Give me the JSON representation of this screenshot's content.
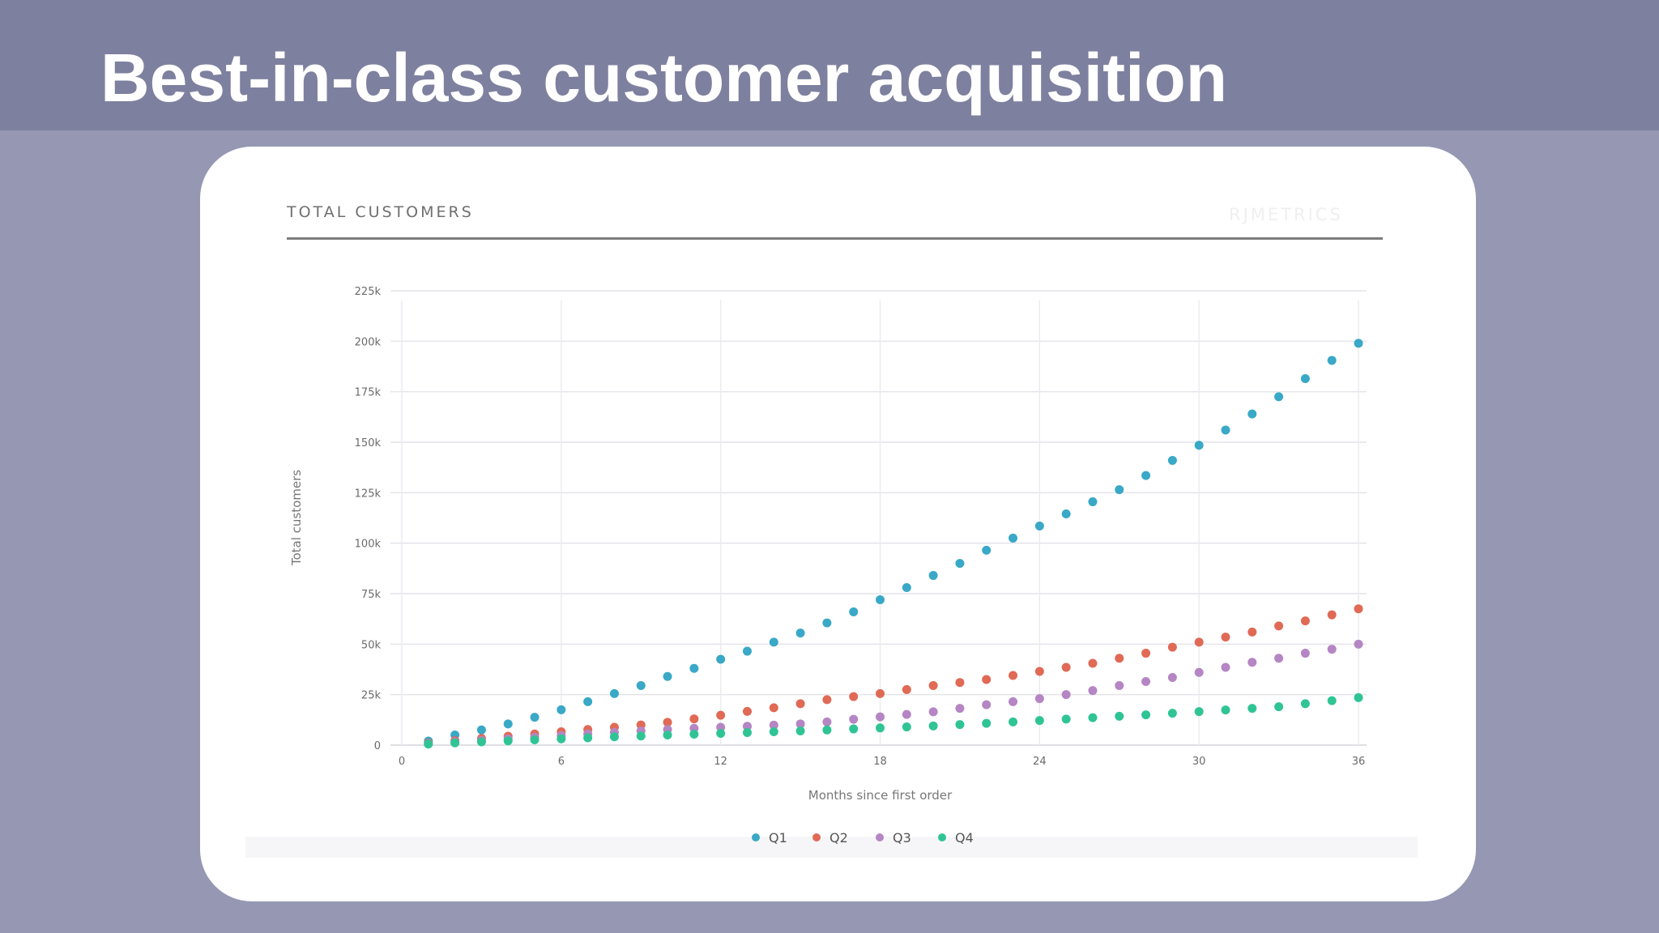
{
  "slide": {
    "title": "Best-in-class customer acquisition"
  },
  "chart_header": {
    "title": "TOTAL CUSTOMERS",
    "brand": "RJMETRICS"
  },
  "colors": {
    "header_bg": "#7e809f",
    "page_bg": "#9597b3",
    "card_bg": "#ffffff",
    "Q1": "#3aa8c7",
    "Q2": "#e06a55",
    "Q3": "#b585c4",
    "Q4": "#30c495"
  },
  "chart_data": {
    "type": "scatter",
    "title": "TOTAL CUSTOMERS",
    "xlabel": "Months since first order",
    "ylabel": "Total customers",
    "xlim": [
      0,
      36
    ],
    "ylim": [
      0,
      225000
    ],
    "xticks": [
      0,
      6,
      12,
      18,
      24,
      30,
      36
    ],
    "yticks": [
      {
        "value": 0,
        "label": "0"
      },
      {
        "value": 25000,
        "label": "25k"
      },
      {
        "value": 50000,
        "label": "50k"
      },
      {
        "value": 75000,
        "label": "75k"
      },
      {
        "value": 100000,
        "label": "100k"
      },
      {
        "value": 125000,
        "label": "125k"
      },
      {
        "value": 150000,
        "label": "150k"
      },
      {
        "value": 175000,
        "label": "175k"
      },
      {
        "value": 200000,
        "label": "200k"
      },
      {
        "value": 225000,
        "label": "225k"
      }
    ],
    "grid": true,
    "legend_position": "bottom-center",
    "x": [
      1,
      2,
      3,
      4,
      5,
      6,
      7,
      8,
      9,
      10,
      11,
      12,
      13,
      14,
      15,
      16,
      17,
      18,
      19,
      20,
      21,
      22,
      23,
      24,
      25,
      26,
      27,
      28,
      29,
      30,
      31,
      32,
      33,
      34,
      35,
      36
    ],
    "series": [
      {
        "name": "Q1",
        "color": "#3aa8c7",
        "values": [
          2000,
          5000,
          7500,
          10500,
          13800,
          17500,
          21500,
          25500,
          29500,
          34000,
          38000,
          42500,
          46500,
          51000,
          55500,
          60500,
          66000,
          72000,
          78000,
          84000,
          90000,
          96500,
          102500,
          108500,
          114500,
          120500,
          126500,
          133500,
          141000,
          148500,
          156000,
          164000,
          172500,
          181500,
          190500,
          199000
        ]
      },
      {
        "name": "Q2",
        "color": "#e06a55",
        "values": [
          1000,
          2200,
          3300,
          4400,
          5500,
          6600,
          7700,
          8800,
          10000,
          11300,
          13000,
          14800,
          16700,
          18500,
          20500,
          22500,
          24000,
          25500,
          27500,
          29500,
          31000,
          32500,
          34500,
          36500,
          38500,
          40500,
          43000,
          45500,
          48500,
          51000,
          53500,
          56000,
          59000,
          61500,
          64500,
          67500
        ]
      },
      {
        "name": "Q3",
        "color": "#b585c4",
        "values": [
          700,
          1500,
          2300,
          3100,
          3900,
          4700,
          5500,
          6300,
          7000,
          7700,
          8300,
          8800,
          9300,
          9900,
          10500,
          11500,
          12800,
          14000,
          15200,
          16500,
          18200,
          20000,
          21500,
          23000,
          25000,
          27000,
          29500,
          31500,
          33500,
          36000,
          38500,
          41000,
          43000,
          45500,
          47500,
          50000
        ]
      },
      {
        "name": "Q4",
        "color": "#30c495",
        "values": [
          500,
          1100,
          1600,
          2100,
          2600,
          3100,
          3600,
          4100,
          4500,
          5000,
          5400,
          5800,
          6200,
          6600,
          7000,
          7500,
          8000,
          8500,
          9000,
          9500,
          10200,
          10800,
          11500,
          12200,
          12900,
          13600,
          14300,
          15000,
          15800,
          16600,
          17400,
          18200,
          19000,
          20500,
          22000,
          23500
        ]
      }
    ]
  }
}
